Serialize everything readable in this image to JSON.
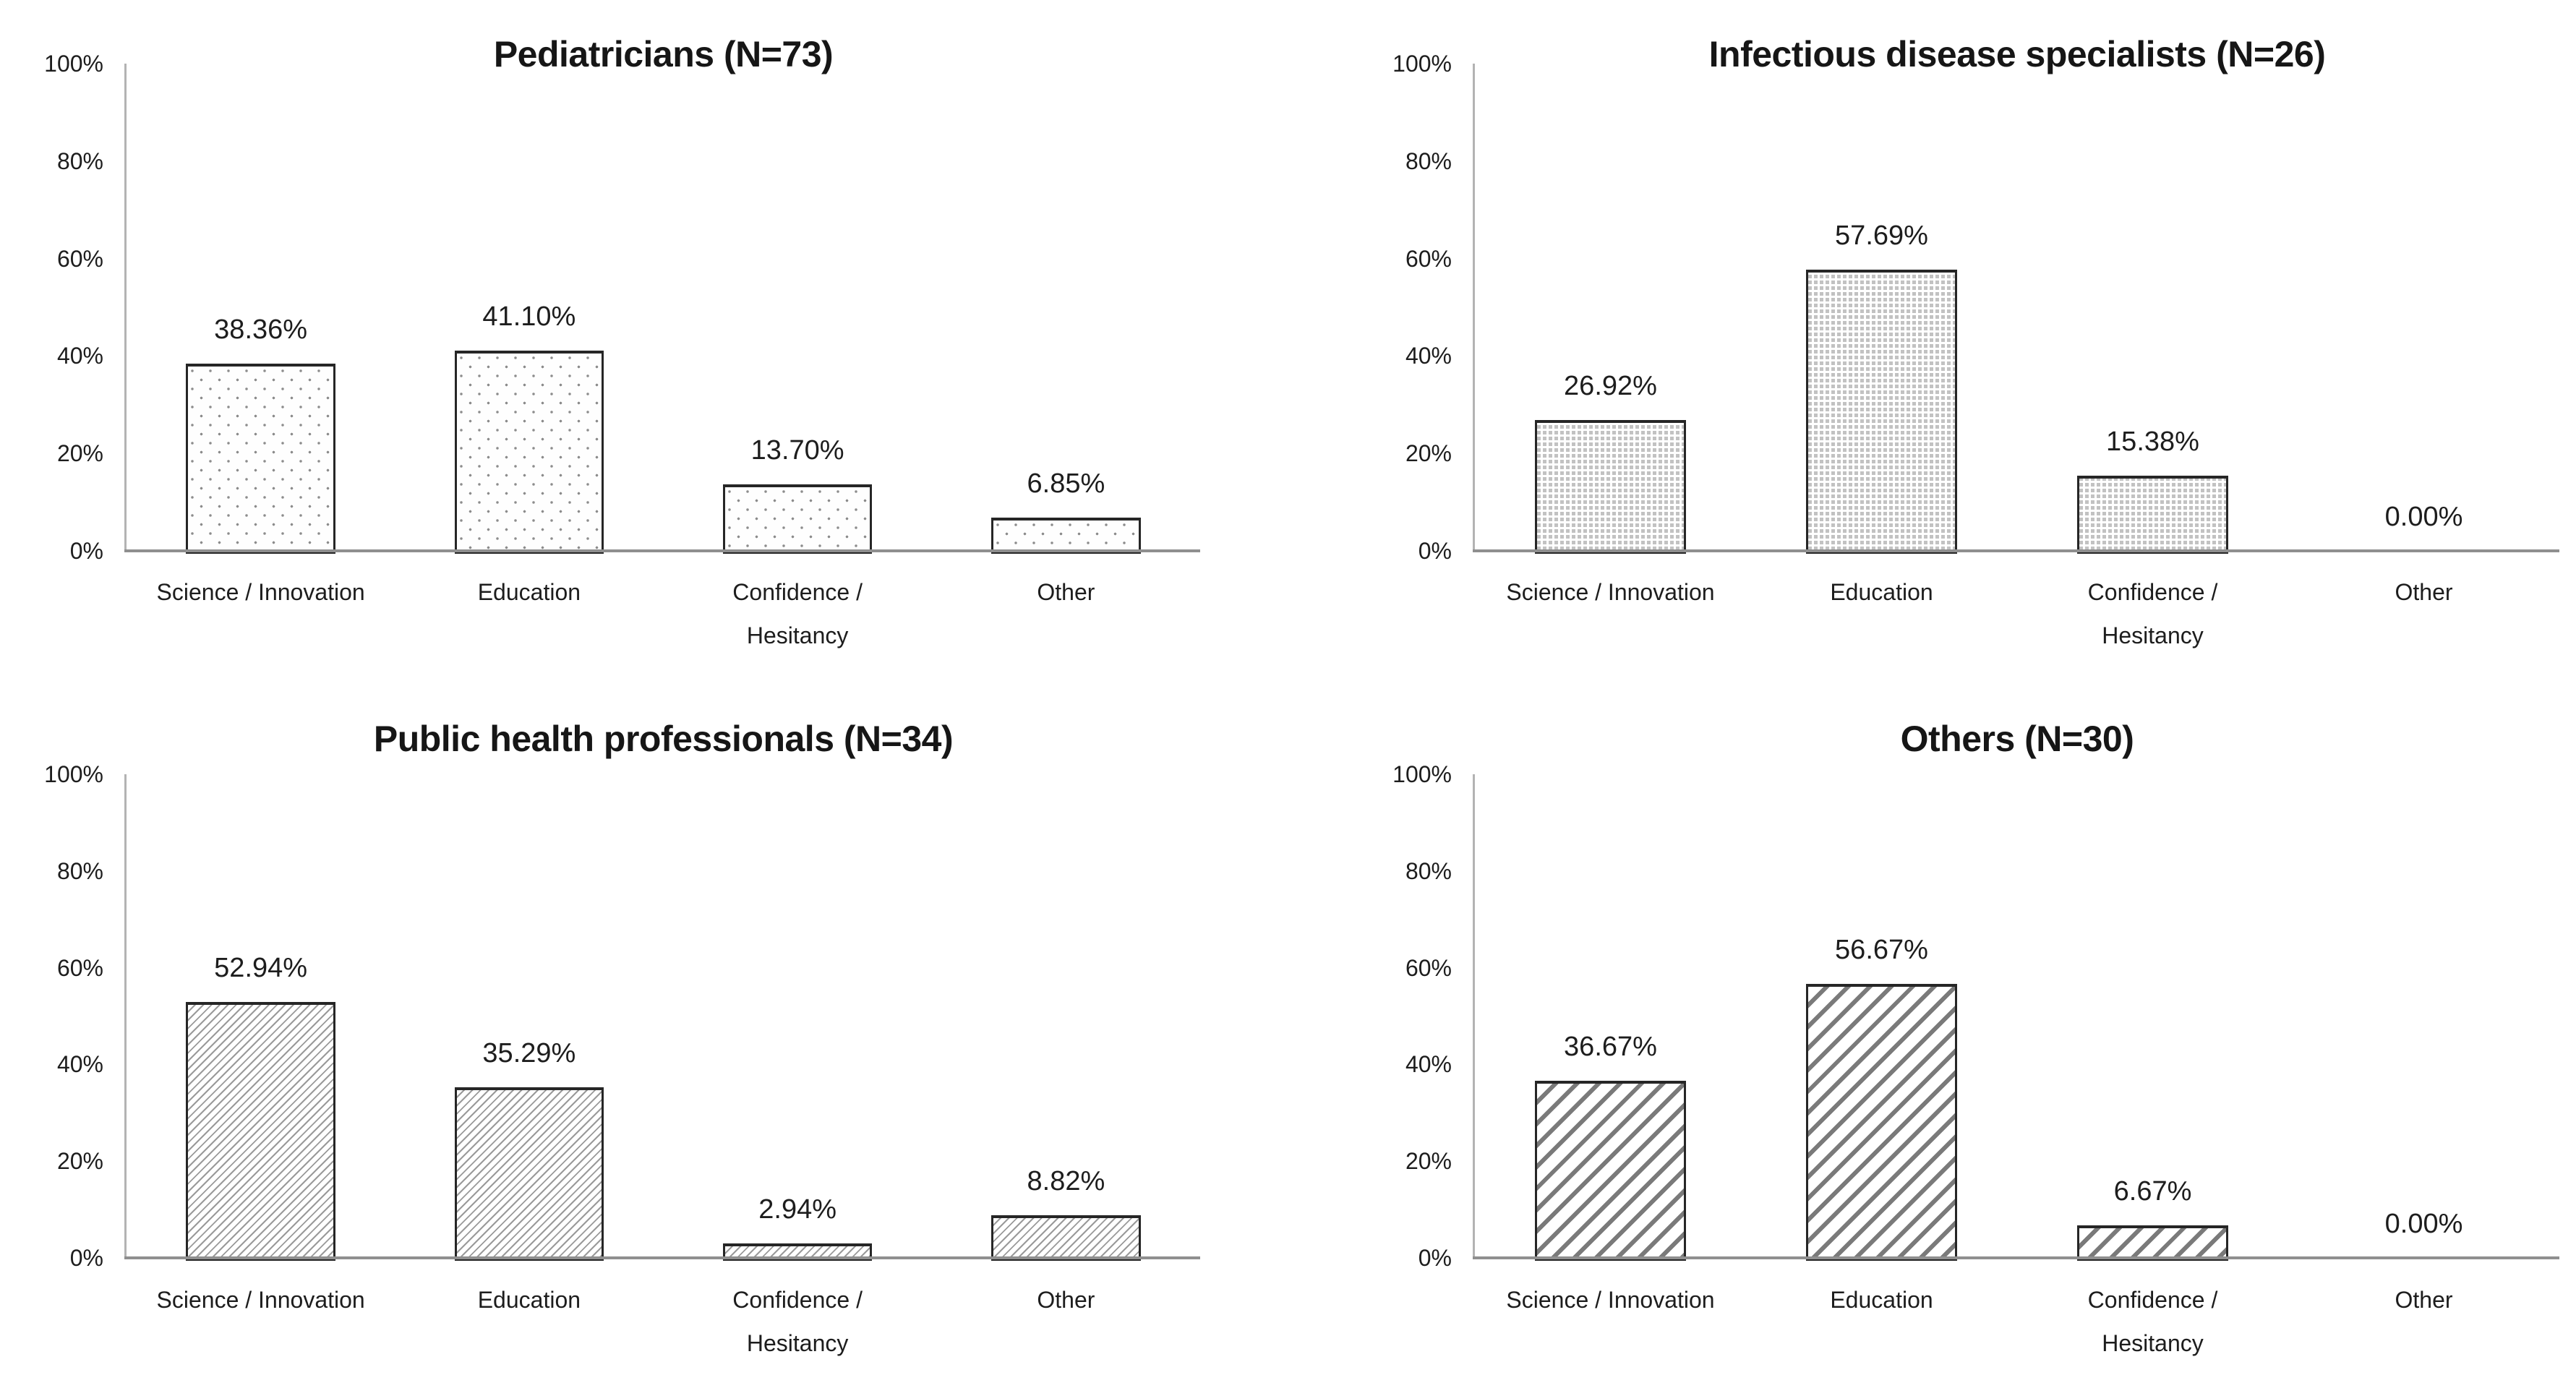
{
  "colors": {
    "background": "#ffffff",
    "text": "#1d1d1d",
    "bar_border": "#262626",
    "y_axis_line": "#b3b3b3",
    "x_axis_line": "#8f8f8f",
    "pattern_ink": "#8c8c8c"
  },
  "y_axis": {
    "min": 0,
    "max": 100,
    "tick_step": 20,
    "tick_values": [
      100,
      80,
      60,
      40,
      20,
      0
    ],
    "tick_labels": [
      "100%",
      "80%",
      "60%",
      "40%",
      "20%",
      "0%"
    ]
  },
  "chart_data": [
    {
      "type": "bar",
      "title": "Pediatricians (N=73)",
      "pattern": "dots-sparse",
      "categories": [
        "Science / Innovation",
        "Education",
        "Confidence /\nHesitancy",
        "Other"
      ],
      "values": [
        38.36,
        41.1,
        13.7,
        6.85
      ],
      "data_labels": [
        "38.36%",
        "41.10%",
        "13.70%",
        "6.85%"
      ],
      "ylim": [
        0,
        100
      ],
      "grid": false,
      "legend": false
    },
    {
      "type": "bar",
      "title": "Infectious disease specialists (N=26)",
      "pattern": "grid-dense",
      "categories": [
        "Science / Innovation",
        "Education",
        "Confidence /\nHesitancy",
        "Other"
      ],
      "values": [
        26.92,
        57.69,
        15.38,
        0.0
      ],
      "data_labels": [
        "26.92%",
        "57.69%",
        "15.38%",
        "0.00%"
      ],
      "ylim": [
        0,
        100
      ],
      "grid": false,
      "legend": false
    },
    {
      "type": "bar",
      "title": "Public health professionals (N=34)",
      "pattern": "hatch-thin",
      "categories": [
        "Science / Innovation",
        "Education",
        "Confidence /\nHesitancy",
        "Other"
      ],
      "values": [
        52.94,
        35.29,
        2.94,
        8.82
      ],
      "data_labels": [
        "52.94%",
        "35.29%",
        "2.94%",
        "8.82%"
      ],
      "ylim": [
        0,
        100
      ],
      "grid": false,
      "legend": false
    },
    {
      "type": "bar",
      "title": "Others (N=30)",
      "pattern": "hatch-thick",
      "categories": [
        "Science / Innovation",
        "Education",
        "Confidence /\nHesitancy",
        "Other"
      ],
      "values": [
        36.67,
        56.67,
        6.67,
        0.0
      ],
      "data_labels": [
        "36.67%",
        "56.67%",
        "6.67%",
        "0.00%"
      ],
      "ylim": [
        0,
        100
      ],
      "grid": false,
      "legend": false
    }
  ]
}
